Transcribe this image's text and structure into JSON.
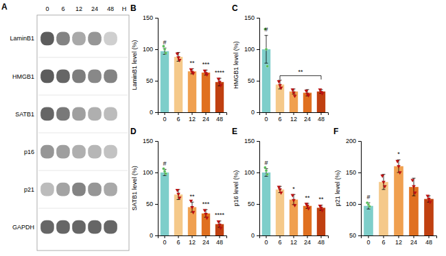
{
  "chart_data": [
    {
      "type": "heatmap",
      "title": "A",
      "categories": [
        "0",
        "6",
        "12",
        "24",
        "48"
      ],
      "rows": [
        "LaminB1",
        "HMGB1",
        "SATB1",
        "p16",
        "p21",
        "GAPDH"
      ],
      "values": [
        [
          0.85,
          0.65,
          0.45,
          0.55,
          0.25
        ],
        [
          0.85,
          0.8,
          0.68,
          0.62,
          0.65
        ],
        [
          0.8,
          0.7,
          0.5,
          0.42,
          0.35
        ],
        [
          0.55,
          0.5,
          0.42,
          0.38,
          0.32
        ],
        [
          0.35,
          0.48,
          0.65,
          0.55,
          0.45
        ],
        [
          0.8,
          0.8,
          0.8,
          0.8,
          0.8
        ]
      ],
      "annotations": [
        "H"
      ]
    },
    {
      "type": "bar",
      "title": "B",
      "ylabel": "LaminB1 level (%)",
      "categories": [
        "0",
        "6",
        "12",
        "24",
        "48"
      ],
      "values": [
        97,
        88,
        65,
        63,
        48
      ],
      "errors": [
        5,
        7,
        4,
        4,
        6
      ],
      "colors": [
        "#7ECECA",
        "#F5C98A",
        "#F0A050",
        "#E07020",
        "#C04010"
      ],
      "ylim": [
        0,
        150
      ],
      "yticks": [
        0,
        50,
        100,
        150
      ],
      "series": [
        {
          "type": "scatter",
          "marker": "circle",
          "color": "#55BB55",
          "values": [
            [
              105,
              100,
              94
            ],
            [],
            [],
            [],
            []
          ]
        },
        {
          "type": "scatter",
          "marker": "triangle-down",
          "color": "#BB1111",
          "values": [
            [],
            [
              93,
              87,
              83
            ],
            [
              68,
              64,
              62
            ],
            [
              66,
              62,
              60
            ],
            [
              53,
              48,
              43
            ]
          ]
        }
      ],
      "annotations": [
        {
          "category": "0",
          "text": "#"
        },
        {
          "category": "12",
          "text": "**"
        },
        {
          "category": "24",
          "text": "***"
        },
        {
          "category": "48",
          "text": "****"
        }
      ]
    },
    {
      "type": "bar",
      "title": "C",
      "ylabel": "HMGB1 level (%)",
      "categories": [
        "0",
        "6",
        "12",
        "24",
        "48"
      ],
      "values": [
        100,
        44,
        33,
        31,
        33
      ],
      "errors": [
        22,
        7,
        4,
        5,
        3
      ],
      "colors": [
        "#7ECECA",
        "#F5C98A",
        "#F0A050",
        "#E07020",
        "#C04010"
      ],
      "ylim": [
        0,
        150
      ],
      "yticks": [
        0,
        50,
        100,
        150
      ],
      "series": [
        {
          "type": "scatter",
          "marker": "circle",
          "color": "#55BB55",
          "values": [
            [
              132,
              100,
              73
            ],
            [],
            [],
            [],
            []
          ]
        },
        {
          "type": "scatter",
          "marker": "triangle-down",
          "color": "#BB1111",
          "values": [
            [],
            [
              49,
              43,
              39
            ],
            [
              36,
              31,
              26
            ],
            [
              34,
              29,
              27
            ],
            [
              36,
              32,
              30
            ]
          ]
        }
      ],
      "annotations": [
        {
          "category": "0",
          "text": "#"
        },
        {
          "from": "6",
          "to": "48",
          "y": 58,
          "text": "**"
        }
      ]
    },
    {
      "type": "bar",
      "title": "D",
      "ylabel": "SATB1 level (%)",
      "categories": [
        "0",
        "6",
        "12",
        "24",
        "48"
      ],
      "values": [
        100,
        65,
        45,
        35,
        18
      ],
      "errors": [
        5,
        8,
        8,
        6,
        5
      ],
      "colors": [
        "#7ECECA",
        "#F5C98A",
        "#F0A050",
        "#E07020",
        "#C04010"
      ],
      "ylim": [
        0,
        150
      ],
      "yticks": [
        0,
        50,
        100,
        150
      ],
      "series": [
        {
          "type": "scatter",
          "marker": "circle",
          "color": "#55BB55",
          "values": [
            [
              106,
              102,
              98
            ],
            [],
            [],
            [],
            []
          ]
        },
        {
          "type": "scatter",
          "marker": "triangle-down",
          "color": "#BB1111",
          "values": [
            [],
            [
              72,
              66,
              60
            ],
            [
              55,
              45,
              37
            ],
            [
              40,
              34,
              28
            ],
            [
              22,
              17,
              12
            ]
          ]
        }
      ],
      "annotations": [
        {
          "category": "0",
          "text": "#"
        },
        {
          "category": "12",
          "text": "**"
        },
        {
          "category": "24",
          "text": "***"
        },
        {
          "category": "48",
          "text": "****"
        }
      ]
    },
    {
      "type": "bar",
      "title": "E",
      "ylabel": "p16 level (%)",
      "categories": [
        "0",
        "6",
        "12",
        "24",
        "48"
      ],
      "values": [
        100,
        73,
        57,
        47,
        44
      ],
      "errors": [
        6,
        5,
        8,
        4,
        4
      ],
      "colors": [
        "#7ECECA",
        "#F5C98A",
        "#F0A050",
        "#E07020",
        "#C04010"
      ],
      "ylim": [
        0,
        150
      ],
      "yticks": [
        0,
        50,
        100,
        150
      ],
      "series": [
        {
          "type": "scatter",
          "marker": "circle",
          "color": "#55BB55",
          "values": [
            [
              108,
              103,
              97
            ],
            [],
            [],
            [],
            []
          ]
        },
        {
          "type": "scatter",
          "marker": "triangle-down",
          "color": "#BB1111",
          "values": [
            [],
            [
              77,
              73,
              68
            ],
            [
              64,
              56,
              48
            ],
            [
              50,
              47,
              43
            ],
            [
              47,
              44,
              40
            ]
          ]
        }
      ],
      "annotations": [
        {
          "category": "0",
          "text": "#"
        },
        {
          "category": "12",
          "text": "*"
        },
        {
          "category": "24",
          "text": "**"
        },
        {
          "category": "48",
          "text": "**"
        }
      ]
    },
    {
      "type": "bar",
      "title": "F",
      "ylabel": "p21 level (%)",
      "categories": [
        "0",
        "6",
        "12",
        "24",
        "48"
      ],
      "values": [
        97,
        135,
        160,
        127,
        108
      ],
      "errors": [
        5,
        12,
        10,
        14,
        5
      ],
      "colors": [
        "#7ECECA",
        "#F5C98A",
        "#F0A050",
        "#E07020",
        "#C04010"
      ],
      "ylim": [
        50,
        200
      ],
      "yticks": [
        50,
        100,
        150,
        200
      ],
      "series": [
        {
          "type": "scatter",
          "marker": "circle",
          "color": "#55BB55",
          "values": [
            [
              102,
              99,
              96
            ],
            [],
            [],
            [],
            []
          ]
        },
        {
          "type": "scatter",
          "marker": "triangle-down",
          "color": "#BB1111",
          "values": [
            [],
            [
              145,
              135,
              128
            ],
            [
              168,
              160,
              150
            ],
            [
              138,
              128,
              118
            ],
            [
              113,
              108,
              103
            ]
          ]
        }
      ],
      "annotations": [
        {
          "category": "0",
          "text": "#"
        },
        {
          "category": "12",
          "text": "*"
        }
      ]
    }
  ]
}
